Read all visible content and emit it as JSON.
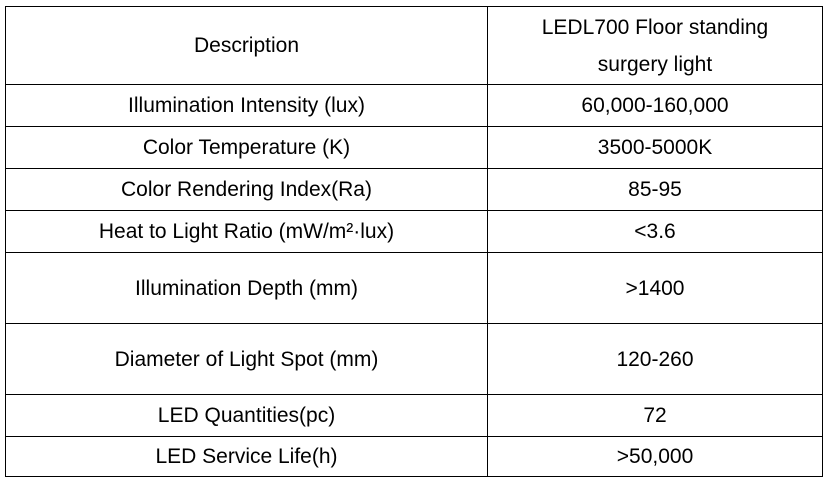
{
  "table": {
    "header": {
      "label": "Description",
      "product_line1": "LEDL700 Floor standing",
      "product_line2": "surgery light"
    },
    "rows": [
      {
        "label": "Illumination Intensity (lux)",
        "value": "60,000-160,000"
      },
      {
        "label": "Color Temperature (K)",
        "value": "3500-5000K"
      },
      {
        "label": "Color Rendering Index(Ra)",
        "value": "85-95"
      },
      {
        "label": "Heat to Light Ratio (mW/m²·lux)",
        "value": "<3.6"
      },
      {
        "label": "Illumination Depth (mm)",
        "value": ">1400"
      },
      {
        "label": "Diameter of Light Spot (mm)",
        "value": "120-260"
      },
      {
        "label": "LED Quantities(pc)",
        "value": "72"
      },
      {
        "label": "LED Service Life(h)",
        "value": ">50,000"
      }
    ]
  }
}
